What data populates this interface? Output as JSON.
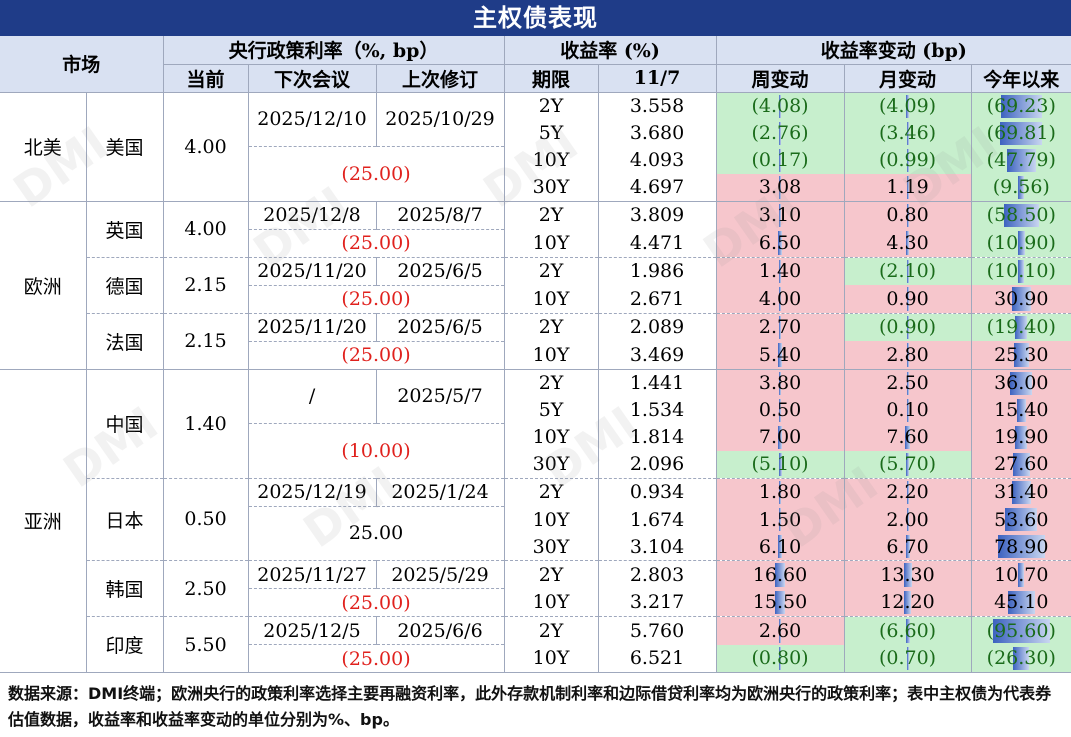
{
  "title": "主权债表现",
  "headers": {
    "market": "市场",
    "policy_rate": "央行政策利率（%, bp）",
    "current": "当前",
    "next_meeting": "下次会议",
    "last_revision": "上次修订",
    "yield": "收益率 (%)",
    "tenor": "期限",
    "date": "11/7",
    "yield_change": "收益率变动 (bp)",
    "week": "周变动",
    "month": "月变动",
    "ytd": "今年以来"
  },
  "regions": [
    {
      "name": "北美",
      "countries": [
        {
          "name": "美国",
          "rate": "4.00",
          "next": "2025/12/10",
          "last": "2025/10/29",
          "change": "(25.00)",
          "change_red": true,
          "split": 2,
          "rows": [
            {
              "tenor": "2Y",
              "yield": "3.558",
              "week": "(4.08)",
              "week_v": -4.08,
              "month": "(4.09)",
              "month_v": -4.09,
              "ytd": "(69.23)",
              "ytd_v": -69.23
            },
            {
              "tenor": "5Y",
              "yield": "3.680",
              "week": "(2.76)",
              "week_v": -2.76,
              "month": "(3.46)",
              "month_v": -3.46,
              "ytd": "(69.81)",
              "ytd_v": -69.81
            },
            {
              "tenor": "10Y",
              "yield": "4.093",
              "week": "(0.17)",
              "week_v": -0.17,
              "month": "(0.99)",
              "month_v": -0.99,
              "ytd": "(47.79)",
              "ytd_v": -47.79
            },
            {
              "tenor": "30Y",
              "yield": "4.697",
              "week": "3.08",
              "week_v": 3.08,
              "month": "1.19",
              "month_v": 1.19,
              "ytd": "(9.56)",
              "ytd_v": -9.56
            }
          ]
        }
      ]
    },
    {
      "name": "欧洲",
      "countries": [
        {
          "name": "英国",
          "rate": "4.00",
          "next": "2025/12/8",
          "last": "2025/8/7",
          "change": "(25.00)",
          "change_red": true,
          "split": 1,
          "rows": [
            {
              "tenor": "2Y",
              "yield": "3.809",
              "week": "3.10",
              "week_v": 3.1,
              "month": "0.80",
              "month_v": 0.8,
              "ytd": "(58.50)",
              "ytd_v": -58.5
            },
            {
              "tenor": "10Y",
              "yield": "4.471",
              "week": "6.50",
              "week_v": 6.5,
              "month": "4.30",
              "month_v": 4.3,
              "ytd": "(10.90)",
              "ytd_v": -10.9
            }
          ]
        },
        {
          "name": "德国",
          "rate": "2.15",
          "next": "2025/11/20",
          "last": "2025/6/5",
          "change": "(25.00)",
          "change_red": true,
          "split": 1,
          "rows": [
            {
              "tenor": "2Y",
              "yield": "1.986",
              "week": "1.40",
              "week_v": 1.4,
              "month": "(2.10)",
              "month_v": -2.1,
              "ytd": "(10.10)",
              "ytd_v": -10.1
            },
            {
              "tenor": "10Y",
              "yield": "2.671",
              "week": "4.00",
              "week_v": 4.0,
              "month": "0.90",
              "month_v": 0.9,
              "ytd": "30.90",
              "ytd_v": 30.9
            }
          ]
        },
        {
          "name": "法国",
          "rate": "2.15",
          "next": "2025/11/20",
          "last": "2025/6/5",
          "change": "(25.00)",
          "change_red": true,
          "split": 1,
          "rows": [
            {
              "tenor": "2Y",
              "yield": "2.089",
              "week": "2.70",
              "week_v": 2.7,
              "month": "(0.90)",
              "month_v": -0.9,
              "ytd": "(19.40)",
              "ytd_v": -19.4
            },
            {
              "tenor": "10Y",
              "yield": "3.469",
              "week": "5.40",
              "week_v": 5.4,
              "month": "2.80",
              "month_v": 2.8,
              "ytd": "25.30",
              "ytd_v": 25.3
            }
          ]
        }
      ]
    },
    {
      "name": "亚洲",
      "countries": [
        {
          "name": "中国",
          "rate": "1.40",
          "next": "/",
          "last": "2025/5/7",
          "change": "(10.00)",
          "change_red": true,
          "split": 2,
          "rows": [
            {
              "tenor": "2Y",
              "yield": "1.441",
              "week": "3.80",
              "week_v": 3.8,
              "month": "2.50",
              "month_v": 2.5,
              "ytd": "36.00",
              "ytd_v": 36.0
            },
            {
              "tenor": "5Y",
              "yield": "1.534",
              "week": "0.50",
              "week_v": 0.5,
              "month": "0.10",
              "month_v": 0.1,
              "ytd": "15.40",
              "ytd_v": 15.4
            },
            {
              "tenor": "10Y",
              "yield": "1.814",
              "week": "7.00",
              "week_v": 7.0,
              "month": "7.60",
              "month_v": 7.6,
              "ytd": "19.90",
              "ytd_v": 19.9
            },
            {
              "tenor": "30Y",
              "yield": "2.096",
              "week": "(5.10)",
              "week_v": -5.1,
              "month": "(5.70)",
              "month_v": -5.7,
              "ytd": "27.60",
              "ytd_v": 27.6
            }
          ]
        },
        {
          "name": "日本",
          "rate": "0.50",
          "next": "2025/12/19",
          "last": "2025/1/24",
          "change": "25.00",
          "change_red": false,
          "split": 1,
          "rows": [
            {
              "tenor": "2Y",
              "yield": "0.934",
              "week": "1.80",
              "week_v": 1.8,
              "month": "2.20",
              "month_v": 2.2,
              "ytd": "31.40",
              "ytd_v": 31.4
            },
            {
              "tenor": "10Y",
              "yield": "1.674",
              "week": "1.50",
              "week_v": 1.5,
              "month": "2.00",
              "month_v": 2.0,
              "ytd": "53.60",
              "ytd_v": 53.6
            },
            {
              "tenor": "30Y",
              "yield": "3.104",
              "week": "6.10",
              "week_v": 6.1,
              "month": "6.70",
              "month_v": 6.7,
              "ytd": "78.90",
              "ytd_v": 78.9
            }
          ]
        },
        {
          "name": "韩国",
          "rate": "2.50",
          "next": "2025/11/27",
          "last": "2025/5/29",
          "change": "(25.00)",
          "change_red": true,
          "split": 1,
          "rows": [
            {
              "tenor": "2Y",
              "yield": "2.803",
              "week": "16.60",
              "week_v": 16.6,
              "month": "13.30",
              "month_v": 13.3,
              "ytd": "10.70",
              "ytd_v": 10.7
            },
            {
              "tenor": "10Y",
              "yield": "3.217",
              "week": "15.50",
              "week_v": 15.5,
              "month": "12.20",
              "month_v": 12.2,
              "ytd": "45.10",
              "ytd_v": 45.1
            }
          ]
        },
        {
          "name": "印度",
          "rate": "5.50",
          "next": "2025/12/5",
          "last": "2025/6/6",
          "change": "(25.00)",
          "change_red": true,
          "split": 1,
          "rows": [
            {
              "tenor": "2Y",
              "yield": "5.760",
              "week": "2.60",
              "week_v": 2.6,
              "month": "(6.60)",
              "month_v": -6.6,
              "ytd": "(95.60)",
              "ytd_v": -95.6
            },
            {
              "tenor": "10Y",
              "yield": "6.521",
              "week": "(0.80)",
              "week_v": -0.8,
              "month": "(0.70)",
              "month_v": -0.7,
              "ytd": "(26.30)",
              "ytd_v": -26.3
            }
          ]
        }
      ]
    }
  ],
  "footnote": "数据来源：DMI终端；欧洲央行的政策利率选择主要再融资利率，此外存款机制利率和边际借贷利率均为欧洲央行的政策利率；表中主权债为代表券估值数据，收益率和收益率变动的单位分别为%、bp。",
  "watermark": "DMI",
  "colors": {
    "header_bg": "#1f3c88",
    "subheader_bg": "#d9e1f2",
    "positive_bg": "#f6c6cc",
    "negative_bg": "#c7efcd",
    "red_text": "#e0211d"
  }
}
